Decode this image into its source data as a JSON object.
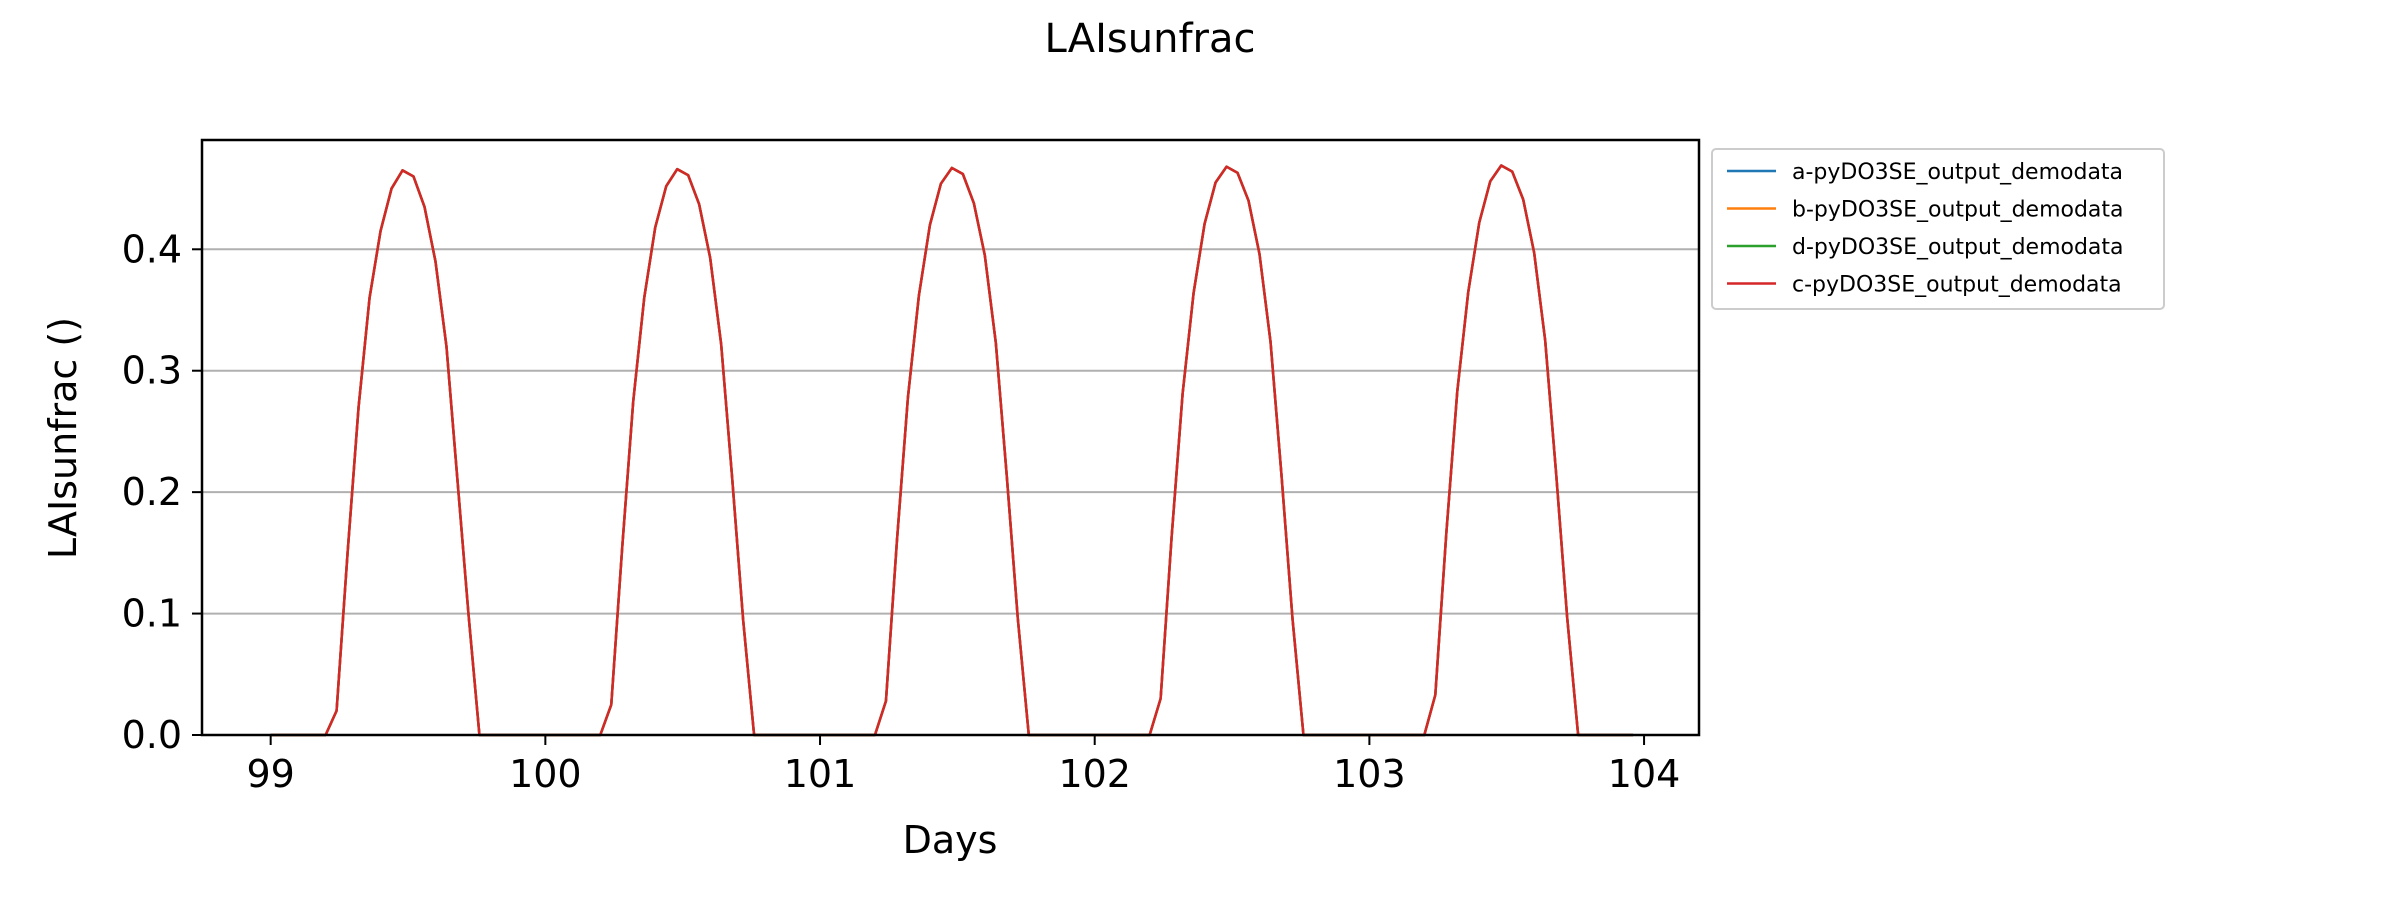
{
  "chart_data": {
    "type": "line",
    "title": "LAIsunfrac",
    "xlabel": "Days",
    "ylabel": "LAIsunfrac ()",
    "xlim": [
      98.75,
      104.2
    ],
    "ylim": [
      0.0,
      0.49
    ],
    "xticks": [
      99,
      100,
      101,
      102,
      103,
      104
    ],
    "yticks": [
      0.0,
      0.1,
      0.2,
      0.3,
      0.4
    ],
    "xtick_labels": [
      "99",
      "100",
      "101",
      "102",
      "103",
      "104"
    ],
    "ytick_labels": [
      "0.0",
      "0.1",
      "0.2",
      "0.3",
      "0.4"
    ],
    "grid": "horizontal",
    "legend_position": "outside-top-right",
    "x": [
      99.0,
      99.04,
      99.08,
      99.12,
      99.16,
      99.2,
      99.24,
      99.28,
      99.32,
      99.36,
      99.4,
      99.44,
      99.48,
      99.52,
      99.56,
      99.6,
      99.64,
      99.68,
      99.72,
      99.76,
      99.8,
      99.84,
      99.88,
      99.92,
      99.96,
      100.0,
      100.04,
      100.08,
      100.12,
      100.16,
      100.2,
      100.24,
      100.28,
      100.32,
      100.36,
      100.4,
      100.44,
      100.48,
      100.52,
      100.56,
      100.6,
      100.64,
      100.68,
      100.72,
      100.76,
      100.8,
      100.84,
      100.88,
      100.92,
      100.96,
      101.0,
      101.04,
      101.08,
      101.12,
      101.16,
      101.2,
      101.24,
      101.28,
      101.32,
      101.36,
      101.4,
      101.44,
      101.48,
      101.52,
      101.56,
      101.6,
      101.64,
      101.68,
      101.72,
      101.76,
      101.8,
      101.84,
      101.88,
      101.92,
      101.96,
      102.0,
      102.04,
      102.08,
      102.12,
      102.16,
      102.2,
      102.24,
      102.28,
      102.32,
      102.36,
      102.4,
      102.44,
      102.48,
      102.52,
      102.56,
      102.6,
      102.64,
      102.68,
      102.72,
      102.76,
      102.8,
      102.84,
      102.88,
      102.92,
      102.96,
      103.0,
      103.04,
      103.08,
      103.12,
      103.16,
      103.2,
      103.24,
      103.28,
      103.32,
      103.36,
      103.4,
      103.44,
      103.48,
      103.52,
      103.56,
      103.6,
      103.64,
      103.68,
      103.72,
      103.76,
      103.8,
      103.84,
      103.88,
      103.92,
      103.96
    ],
    "series": [
      {
        "name": "a-pyDO3SE_output_demodata",
        "color": "#1f77b4",
        "values": [
          0.0,
          0.0,
          0.0,
          0.0,
          0.0,
          0.0,
          0.02,
          0.15,
          0.27,
          0.36,
          0.415,
          0.45,
          0.465,
          0.46,
          0.435,
          0.39,
          0.32,
          0.21,
          0.1,
          0.0,
          0.0,
          0.0,
          0.0,
          0.0,
          0.0,
          0.0,
          0.0,
          0.0,
          0.0,
          0.0,
          0.0,
          0.025,
          0.155,
          0.275,
          0.36,
          0.418,
          0.452,
          0.466,
          0.461,
          0.437,
          0.393,
          0.322,
          0.212,
          0.095,
          0.0,
          0.0,
          0.0,
          0.0,
          0.0,
          0.0,
          0.0,
          0.0,
          0.0,
          0.0,
          0.0,
          0.0,
          0.028,
          0.16,
          0.278,
          0.362,
          0.42,
          0.454,
          0.467,
          0.462,
          0.438,
          0.395,
          0.323,
          0.213,
          0.096,
          0.0,
          0.0,
          0.0,
          0.0,
          0.0,
          0.0,
          0.0,
          0.0,
          0.0,
          0.0,
          0.0,
          0.0,
          0.03,
          0.163,
          0.281,
          0.364,
          0.421,
          0.455,
          0.468,
          0.463,
          0.44,
          0.396,
          0.324,
          0.214,
          0.096,
          0.0,
          0.0,
          0.0,
          0.0,
          0.0,
          0.0,
          0.0,
          0.0,
          0.0,
          0.0,
          0.0,
          0.0,
          0.033,
          0.166,
          0.283,
          0.365,
          0.422,
          0.456,
          0.469,
          0.464,
          0.441,
          0.397,
          0.325,
          0.215,
          0.097,
          0.0,
          0.0,
          0.0,
          0.0,
          0.0,
          0.0
        ]
      },
      {
        "name": "b-pyDO3SE_output_demodata",
        "color": "#ff7f0e",
        "values": [
          0.0,
          0.0,
          0.0,
          0.0,
          0.0,
          0.0,
          0.02,
          0.15,
          0.27,
          0.36,
          0.415,
          0.45,
          0.465,
          0.46,
          0.435,
          0.39,
          0.32,
          0.21,
          0.1,
          0.0,
          0.0,
          0.0,
          0.0,
          0.0,
          0.0,
          0.0,
          0.0,
          0.0,
          0.0,
          0.0,
          0.0,
          0.025,
          0.155,
          0.275,
          0.36,
          0.418,
          0.452,
          0.466,
          0.461,
          0.437,
          0.393,
          0.322,
          0.212,
          0.095,
          0.0,
          0.0,
          0.0,
          0.0,
          0.0,
          0.0,
          0.0,
          0.0,
          0.0,
          0.0,
          0.0,
          0.0,
          0.028,
          0.16,
          0.278,
          0.362,
          0.42,
          0.454,
          0.467,
          0.462,
          0.438,
          0.395,
          0.323,
          0.213,
          0.096,
          0.0,
          0.0,
          0.0,
          0.0,
          0.0,
          0.0,
          0.0,
          0.0,
          0.0,
          0.0,
          0.0,
          0.0,
          0.03,
          0.163,
          0.281,
          0.364,
          0.421,
          0.455,
          0.468,
          0.463,
          0.44,
          0.396,
          0.324,
          0.214,
          0.096,
          0.0,
          0.0,
          0.0,
          0.0,
          0.0,
          0.0,
          0.0,
          0.0,
          0.0,
          0.0,
          0.0,
          0.0,
          0.033,
          0.166,
          0.283,
          0.365,
          0.422,
          0.456,
          0.469,
          0.464,
          0.441,
          0.397,
          0.325,
          0.215,
          0.097,
          0.0,
          0.0,
          0.0,
          0.0,
          0.0,
          0.0
        ]
      },
      {
        "name": "d-pyDO3SE_output_demodata",
        "color": "#2ca02c",
        "values": [
          0.0,
          0.0,
          0.0,
          0.0,
          0.0,
          0.0,
          0.02,
          0.15,
          0.27,
          0.36,
          0.415,
          0.45,
          0.465,
          0.46,
          0.435,
          0.39,
          0.32,
          0.21,
          0.1,
          0.0,
          0.0,
          0.0,
          0.0,
          0.0,
          0.0,
          0.0,
          0.0,
          0.0,
          0.0,
          0.0,
          0.0,
          0.025,
          0.155,
          0.275,
          0.36,
          0.418,
          0.452,
          0.466,
          0.461,
          0.437,
          0.393,
          0.322,
          0.212,
          0.095,
          0.0,
          0.0,
          0.0,
          0.0,
          0.0,
          0.0,
          0.0,
          0.0,
          0.0,
          0.0,
          0.0,
          0.0,
          0.028,
          0.16,
          0.278,
          0.362,
          0.42,
          0.454,
          0.467,
          0.462,
          0.438,
          0.395,
          0.323,
          0.213,
          0.096,
          0.0,
          0.0,
          0.0,
          0.0,
          0.0,
          0.0,
          0.0,
          0.0,
          0.0,
          0.0,
          0.0,
          0.0,
          0.03,
          0.163,
          0.281,
          0.364,
          0.421,
          0.455,
          0.468,
          0.463,
          0.44,
          0.396,
          0.324,
          0.214,
          0.096,
          0.0,
          0.0,
          0.0,
          0.0,
          0.0,
          0.0,
          0.0,
          0.0,
          0.0,
          0.0,
          0.0,
          0.0,
          0.033,
          0.166,
          0.283,
          0.365,
          0.422,
          0.456,
          0.469,
          0.464,
          0.441,
          0.397,
          0.325,
          0.215,
          0.097,
          0.0,
          0.0,
          0.0,
          0.0,
          0.0,
          0.0
        ]
      },
      {
        "name": "c-pyDO3SE_output_demodata",
        "color": "#d62728",
        "values": [
          0.0,
          0.0,
          0.0,
          0.0,
          0.0,
          0.0,
          0.02,
          0.15,
          0.27,
          0.36,
          0.415,
          0.45,
          0.465,
          0.46,
          0.435,
          0.39,
          0.32,
          0.21,
          0.1,
          0.0,
          0.0,
          0.0,
          0.0,
          0.0,
          0.0,
          0.0,
          0.0,
          0.0,
          0.0,
          0.0,
          0.0,
          0.025,
          0.155,
          0.275,
          0.36,
          0.418,
          0.452,
          0.466,
          0.461,
          0.437,
          0.393,
          0.322,
          0.212,
          0.095,
          0.0,
          0.0,
          0.0,
          0.0,
          0.0,
          0.0,
          0.0,
          0.0,
          0.0,
          0.0,
          0.0,
          0.0,
          0.028,
          0.16,
          0.278,
          0.362,
          0.42,
          0.454,
          0.467,
          0.462,
          0.438,
          0.395,
          0.323,
          0.213,
          0.096,
          0.0,
          0.0,
          0.0,
          0.0,
          0.0,
          0.0,
          0.0,
          0.0,
          0.0,
          0.0,
          0.0,
          0.0,
          0.03,
          0.163,
          0.281,
          0.364,
          0.421,
          0.455,
          0.468,
          0.463,
          0.44,
          0.396,
          0.324,
          0.214,
          0.096,
          0.0,
          0.0,
          0.0,
          0.0,
          0.0,
          0.0,
          0.0,
          0.0,
          0.0,
          0.0,
          0.0,
          0.0,
          0.033,
          0.166,
          0.283,
          0.365,
          0.422,
          0.456,
          0.469,
          0.464,
          0.441,
          0.397,
          0.325,
          0.215,
          0.097,
          0.0,
          0.0,
          0.0,
          0.0,
          0.0,
          0.0
        ]
      }
    ]
  }
}
